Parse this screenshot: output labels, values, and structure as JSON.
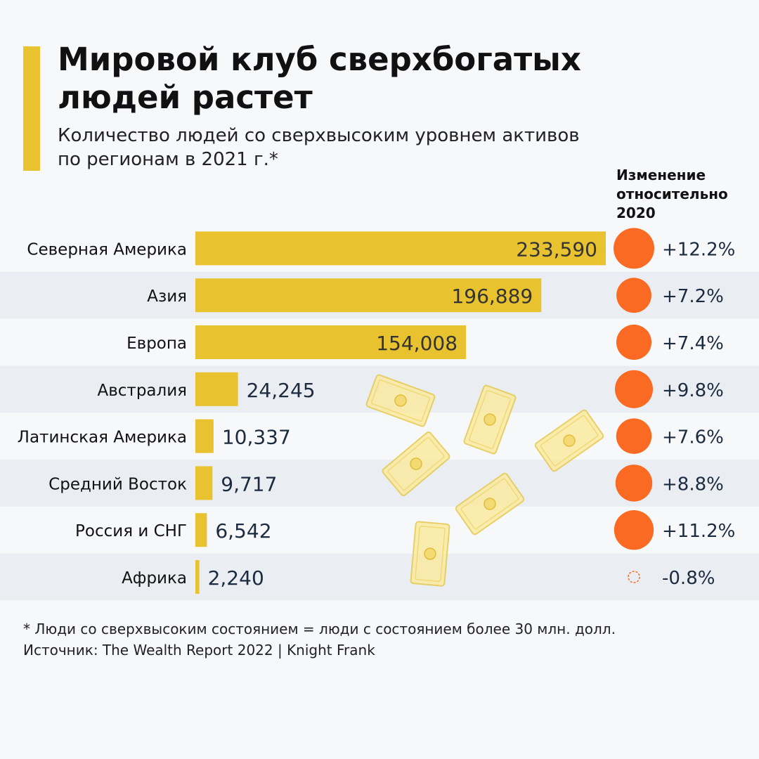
{
  "header": {
    "title_line1": "Мировой клуб сверхбогатых",
    "title_line2": "людей растет",
    "subtitle_line1": "Количество людей со сверхвысоким уровнем активов",
    "subtitle_line2": "по регионам в 2021 г.*",
    "change_header_line1": "Изменение",
    "change_header_line2": "относительно",
    "change_header_line3": "2020"
  },
  "colors": {
    "bar": "#e8c22f",
    "change_positive": "#fb6a22",
    "change_negative": "#fb6a22",
    "row_stripe": "#eaeef3",
    "value_text_on_bar": "#333333",
    "value_text_outside": "#1c2b3f",
    "accent": "#e8c22f"
  },
  "chart_data": {
    "type": "bar",
    "orientation": "horizontal",
    "title": "Мировой клуб сверхбогатых людей растет",
    "categories": [
      "Северная Америка",
      "Азия",
      "Европа",
      "Австралия",
      "Латинская Америка",
      "Средний Восток",
      "Россия и СНГ",
      "Африка"
    ],
    "values": [
      233590,
      196889,
      154008,
      24245,
      10337,
      9717,
      6542,
      2240
    ],
    "value_labels": [
      "233,590",
      "196,889",
      "154,008",
      "24,245",
      "10,337",
      "9,717",
      "6,542",
      "2,240"
    ],
    "change_values": [
      12.2,
      7.2,
      7.4,
      9.8,
      7.6,
      8.8,
      11.2,
      -0.8
    ],
    "change_labels": [
      "+12.2%",
      "+7.2%",
      "+7.4%",
      "+9.8%",
      "+7.6%",
      "+8.8%",
      "+11.2%",
      "-0.8%"
    ],
    "xlim": [
      0,
      233590
    ],
    "legend": "none",
    "grid": false
  },
  "footnote": {
    "line1": "* Люди со сверхвысоким состоянием = люди с состоянием более 30 млн. долл.",
    "line2": "Источник: The Wealth Report 2022 | Knight Frank"
  }
}
